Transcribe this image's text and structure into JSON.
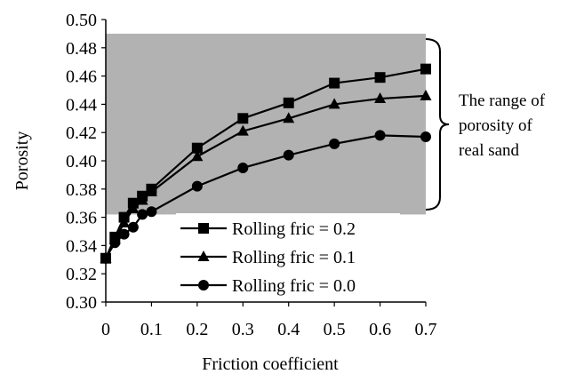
{
  "chart_data": {
    "type": "line",
    "title": "",
    "xlabel": "Friction coefficient",
    "ylabel": "Porosity",
    "xlim": [
      0,
      0.7
    ],
    "ylim": [
      0.3,
      0.5
    ],
    "x_ticks": [
      "0",
      "0.1",
      "0.2",
      "0.3",
      "0.4",
      "0.5",
      "0.6",
      "0.7"
    ],
    "x_tick_values": [
      0,
      0.1,
      0.2,
      0.3,
      0.4,
      0.5,
      0.6,
      0.7
    ],
    "y_ticks": [
      "0.30",
      "0.32",
      "0.34",
      "0.36",
      "0.38",
      "0.40",
      "0.42",
      "0.44",
      "0.46",
      "0.48",
      "0.50"
    ],
    "y_tick_values": [
      0.3,
      0.32,
      0.34,
      0.36,
      0.38,
      0.4,
      0.42,
      0.44,
      0.46,
      0.48,
      0.5
    ],
    "x": [
      0,
      0.02,
      0.04,
      0.06,
      0.08,
      0.1,
      0.2,
      0.3,
      0.4,
      0.5,
      0.6,
      0.7
    ],
    "series": [
      {
        "name": "Rolling fric = 0.2",
        "marker": "square",
        "values": [
          0.331,
          0.346,
          0.36,
          0.37,
          0.375,
          0.38,
          0.409,
          0.43,
          0.441,
          0.455,
          0.459,
          0.465
        ]
      },
      {
        "name": "Rolling fric = 0.1",
        "marker": "triangle",
        "values": [
          0.331,
          0.344,
          0.356,
          0.366,
          0.372,
          0.378,
          0.403,
          0.421,
          0.43,
          0.44,
          0.444,
          0.446
        ]
      },
      {
        "name": "Rolling fric = 0.0",
        "marker": "circle",
        "values": [
          0.331,
          0.342,
          0.348,
          0.353,
          0.362,
          0.364,
          0.382,
          0.395,
          0.404,
          0.412,
          0.418,
          0.417
        ]
      }
    ],
    "shaded_band": {
      "y_range": [
        0.362,
        0.49
      ],
      "color": "#b2b2b2",
      "label": "The range of porosity of real sand",
      "label_lines": [
        "The range of",
        "porosity of",
        "real sand"
      ]
    },
    "legend_position": "bottom-right",
    "grid": false,
    "line_color": "#000000"
  }
}
